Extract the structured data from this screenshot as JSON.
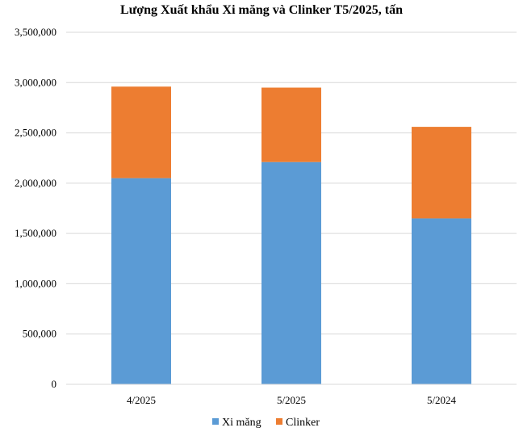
{
  "chart_data": {
    "type": "bar",
    "stacked": true,
    "title": "Lượng Xuất khẩu Xi măng và Clinker T5/2025, tấn",
    "xlabel": "",
    "ylabel": "",
    "categories": [
      "4/2025",
      "5/2025",
      "5/2024"
    ],
    "series": [
      {
        "name": "Xi măng",
        "color": "#5B9BD5",
        "values": [
          2050000,
          2210000,
          1650000
        ]
      },
      {
        "name": "Clinker",
        "color": "#ED7D31",
        "values": [
          910000,
          740000,
          910000
        ]
      }
    ],
    "ylim": [
      0,
      3500000
    ],
    "yticks": [
      0,
      500000,
      1000000,
      1500000,
      2000000,
      2500000,
      3000000,
      3500000
    ],
    "ytick_labels": [
      "0",
      "500,000",
      "1,000,000",
      "1,500,000",
      "2,000,000",
      "2,500,000",
      "3,000,000",
      "3,500,000"
    ],
    "grid": true,
    "gridline_color": "#D9D9D9",
    "legend_position": "bottom"
  }
}
